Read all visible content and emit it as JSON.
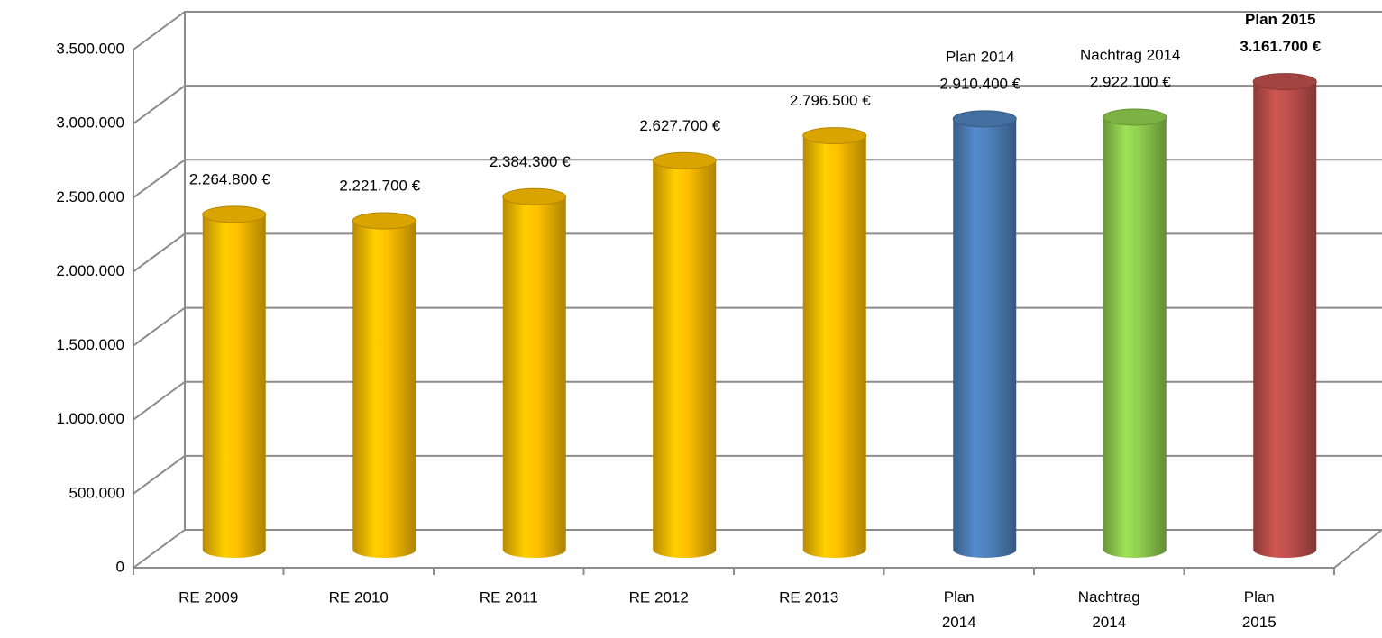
{
  "chart_data": {
    "type": "bar3d",
    "categories": [
      "RE 2009",
      "RE 2010",
      "RE 2011",
      "RE 2012",
      "RE 2013",
      "Plan 2014",
      "Nachtrag 2014",
      "Plan 2015"
    ],
    "values": [
      2264800,
      2221700,
      2384300,
      2627700,
      2796500,
      2910400,
      2922100,
      3161700
    ],
    "value_labels": [
      "2.264.800 €",
      "2.221.700 €",
      "2.384.300 €",
      "2.627.700 €",
      "2.796.500 €",
      "2.910.400 €",
      "2.922.100 €",
      "3.161.700 €"
    ],
    "label_titles": [
      null,
      null,
      null,
      null,
      null,
      "Plan 2014",
      "Nachtrag 2014",
      "Plan 2015"
    ],
    "colors": [
      "#FFC000",
      "#FFC000",
      "#FFC000",
      "#FFC000",
      "#FFC000",
      "#4F81BD",
      "#92D050",
      "#C0504D"
    ],
    "ylim": [
      0,
      3500000
    ],
    "yticks": [
      0,
      {
        "value": 500000,
        "label": "500.000"
      },
      {
        "value": 1000000,
        "label": "1.000.000"
      },
      {
        "value": 1500000,
        "label": "1.500.000"
      },
      {
        "value": 2000000,
        "label": "2.000.000"
      },
      {
        "value": 2500000,
        "label": "2.500.000"
      },
      {
        "value": 3000000,
        "label": "3.000.000"
      },
      {
        "value": 3500000,
        "label": "3.500.000"
      }
    ],
    "grid": true
  }
}
